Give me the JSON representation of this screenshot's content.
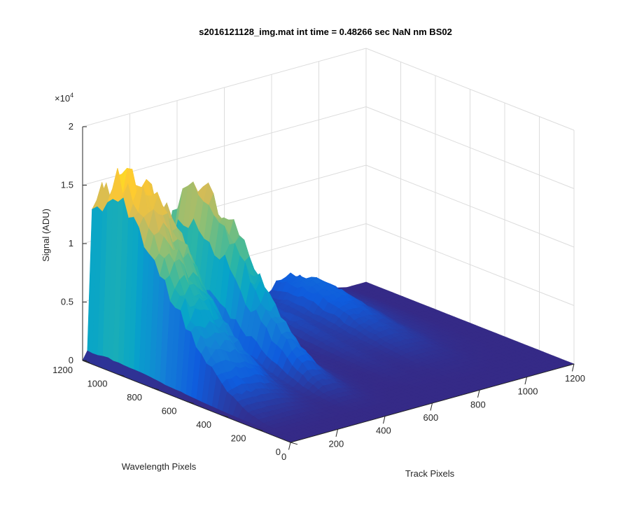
{
  "chart_data": {
    "type": "surface",
    "title": "s2016121128_img.mat int time = 0.48266 sec  NaN nm BS02",
    "xlabel": "Track Pixels",
    "ylabel": "Wavelength Pixels",
    "zlabel": "Signal (ADU)",
    "z_exponent": "×10",
    "z_exponent_power": "4",
    "xlim": [
      0,
      1200
    ],
    "ylim": [
      0,
      1200
    ],
    "zlim": [
      0,
      20000
    ],
    "x_ticks": [
      "0",
      "200",
      "400",
      "600",
      "800",
      "1000",
      "1200"
    ],
    "y_ticks": [
      "0",
      "200",
      "400",
      "600",
      "800",
      "1000",
      "1200"
    ],
    "z_ticks": [
      "0",
      "0.5",
      "1",
      "1.5",
      "2"
    ],
    "grid": true,
    "colormap": "parula",
    "colormap_colors": [
      "#352A87",
      "#0F5CDD",
      "#1481D6",
      "#06A4CA",
      "#2EB7A4",
      "#87BF77",
      "#D1BB59",
      "#FEC832",
      "#F9FB0E"
    ],
    "track_profile": {
      "track": [
        0,
        20,
        40,
        60,
        80,
        100,
        140,
        180,
        220,
        260,
        290,
        320,
        340,
        360,
        380,
        400,
        430,
        460,
        500,
        540,
        580,
        620,
        660,
        700,
        740,
        780,
        820,
        880,
        940,
        1000,
        1060,
        1120,
        1200
      ],
      "relative_signal": [
        0.0,
        0.05,
        0.9,
        1.0,
        1.0,
        0.99,
        0.96,
        0.88,
        0.72,
        0.48,
        0.3,
        0.25,
        0.4,
        0.66,
        0.82,
        0.83,
        0.78,
        0.5,
        0.18,
        0.06,
        0.03,
        0.03,
        0.08,
        0.1,
        0.07,
        0.09,
        0.16,
        0.18,
        0.13,
        0.05,
        0.02,
        0.0,
        0.0
      ]
    },
    "wavelength_profile": {
      "wavelength": [
        0,
        100,
        200,
        300,
        400,
        500,
        600,
        700,
        750,
        800,
        850,
        900,
        950,
        1000,
        1050,
        1100,
        1150,
        1200
      ],
      "relative_signal": [
        0.0,
        0.0,
        0.01,
        0.04,
        0.1,
        0.2,
        0.33,
        0.48,
        0.56,
        0.66,
        0.75,
        0.84,
        0.92,
        0.97,
        0.99,
        0.97,
        0.9,
        0.86
      ]
    },
    "peak_signal": 16000
  }
}
